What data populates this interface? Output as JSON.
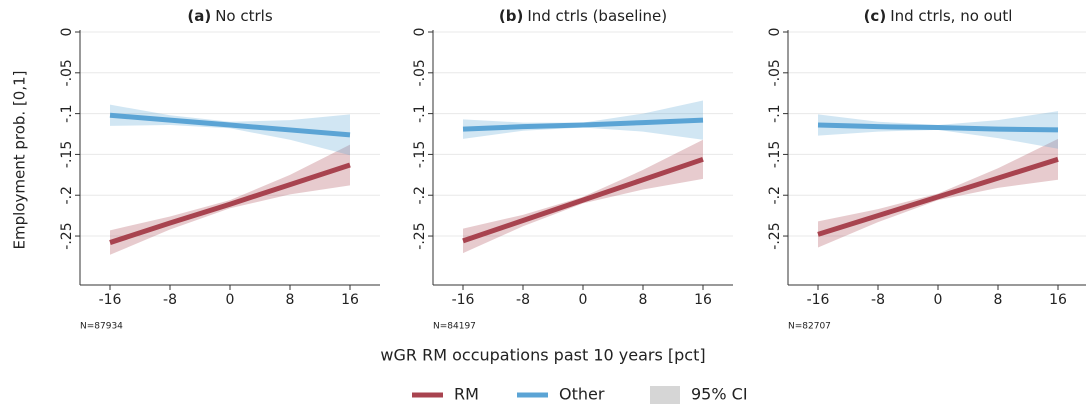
{
  "chart_data": [
    {
      "type": "line",
      "title_prefix": "(a)",
      "title": "No ctrls",
      "ylabel": "Employment prob. [0,1]",
      "note": "N=87934",
      "x": [
        -16,
        -8,
        0,
        8,
        16
      ],
      "xlim": [
        -20,
        20
      ],
      "xticks": [
        -16,
        -8,
        0,
        8,
        16
      ],
      "ylim": [
        -0.31,
        0
      ],
      "yticks": [
        {
          "value": 0,
          "label": "0"
        },
        {
          "value": -0.05,
          "label": "-.05"
        },
        {
          "value": -0.1,
          "label": "-.1"
        },
        {
          "value": -0.15,
          "label": "-.15"
        },
        {
          "value": -0.2,
          "label": "-.2"
        },
        {
          "value": -0.25,
          "label": "-.25"
        }
      ],
      "grid": true,
      "series": [
        {
          "name": "RM",
          "color": "#a8434f",
          "values": [
            -0.258,
            -0.234,
            -0.211,
            -0.187,
            -0.163
          ],
          "lower": [
            -0.273,
            -0.242,
            -0.216,
            -0.199,
            -0.188
          ],
          "upper": [
            -0.243,
            -0.226,
            -0.206,
            -0.175,
            -0.138
          ]
        },
        {
          "name": "Other",
          "color": "#5ba4d5",
          "values": [
            -0.102,
            -0.108,
            -0.114,
            -0.12,
            -0.126
          ],
          "lower": [
            -0.115,
            -0.114,
            -0.118,
            -0.132,
            -0.151
          ],
          "upper": [
            -0.089,
            -0.102,
            -0.11,
            -0.108,
            -0.101
          ]
        }
      ]
    },
    {
      "type": "line",
      "title_prefix": "(b)",
      "title": "Ind ctrls (baseline)",
      "note": "N=84197",
      "x": [
        -16,
        -8,
        0,
        8,
        16
      ],
      "xlim": [
        -20,
        20
      ],
      "xticks": [
        -16,
        -8,
        0,
        8,
        16
      ],
      "ylim": [
        -0.31,
        0
      ],
      "yticks": [
        {
          "value": 0,
          "label": "0"
        },
        {
          "value": -0.05,
          "label": "-.05"
        },
        {
          "value": -0.1,
          "label": "-.1"
        },
        {
          "value": -0.15,
          "label": "-.15"
        },
        {
          "value": -0.2,
          "label": "-.2"
        },
        {
          "value": -0.25,
          "label": "-.25"
        }
      ],
      "grid": true,
      "series": [
        {
          "name": "RM",
          "color": "#a8434f",
          "values": [
            -0.256,
            -0.231,
            -0.206,
            -0.181,
            -0.156
          ],
          "lower": [
            -0.271,
            -0.238,
            -0.21,
            -0.193,
            -0.18
          ],
          "upper": [
            -0.241,
            -0.224,
            -0.202,
            -0.169,
            -0.132
          ]
        },
        {
          "name": "Other",
          "color": "#5ba4d5",
          "values": [
            -0.119,
            -0.116,
            -0.114,
            -0.111,
            -0.108
          ],
          "lower": [
            -0.131,
            -0.121,
            -0.117,
            -0.122,
            -0.132
          ],
          "upper": [
            -0.107,
            -0.111,
            -0.111,
            -0.1,
            -0.084
          ]
        }
      ]
    },
    {
      "type": "line",
      "title_prefix": "(c)",
      "title": "Ind ctrls, no outl",
      "note": "N=82707",
      "x": [
        -16,
        -8,
        0,
        8,
        16
      ],
      "xlim": [
        -20,
        20
      ],
      "xticks": [
        -16,
        -8,
        0,
        8,
        16
      ],
      "ylim": [
        -0.31,
        0
      ],
      "yticks": [
        {
          "value": 0,
          "label": "0"
        },
        {
          "value": -0.05,
          "label": "-.05"
        },
        {
          "value": -0.1,
          "label": "-.1"
        },
        {
          "value": -0.15,
          "label": "-.15"
        },
        {
          "value": -0.2,
          "label": "-.2"
        },
        {
          "value": -0.25,
          "label": "-.25"
        }
      ],
      "grid": true,
      "series": [
        {
          "name": "RM",
          "color": "#a8434f",
          "values": [
            -0.248,
            -0.225,
            -0.202,
            -0.179,
            -0.156
          ],
          "lower": [
            -0.264,
            -0.233,
            -0.206,
            -0.191,
            -0.181
          ],
          "upper": [
            -0.232,
            -0.217,
            -0.198,
            -0.167,
            -0.131
          ]
        },
        {
          "name": "Other",
          "color": "#5ba4d5",
          "values": [
            -0.114,
            -0.116,
            -0.117,
            -0.119,
            -0.12
          ],
          "lower": [
            -0.127,
            -0.122,
            -0.12,
            -0.13,
            -0.143
          ],
          "upper": [
            -0.101,
            -0.11,
            -0.114,
            -0.108,
            -0.097
          ]
        }
      ]
    }
  ],
  "xlabel": "wGR RM occupations past 10 years [pct]",
  "ci_label": "95% CI",
  "ci_color": "#d6d6d6"
}
